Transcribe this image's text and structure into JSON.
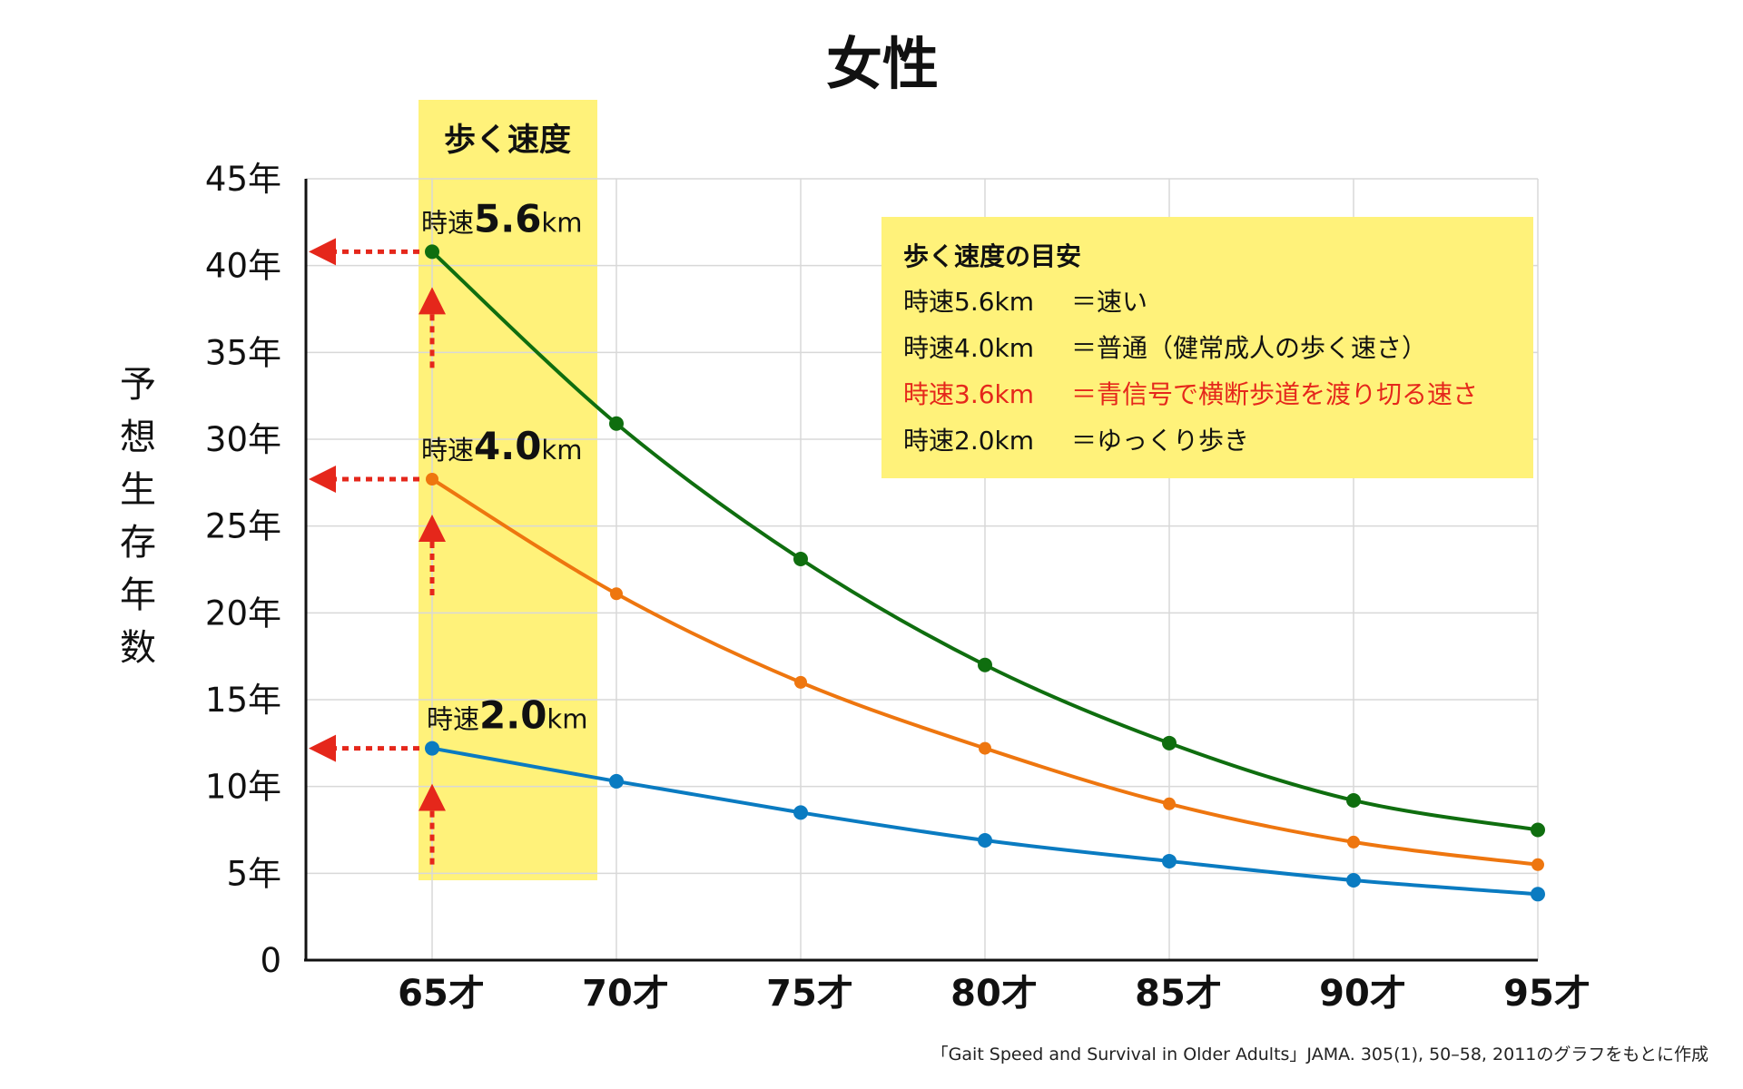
{
  "title": "女性",
  "band_label": "歩く速度",
  "y_axis_label": [
    "予",
    "想",
    "生",
    "存",
    "年",
    "数"
  ],
  "y_ticks": [
    "0",
    "5年",
    "10年",
    "15年",
    "20年",
    "25年",
    "30年",
    "35年",
    "40年",
    "45年"
  ],
  "x_ticks": [
    "65才",
    "70才",
    "75才",
    "80才",
    "85才",
    "90才",
    "95才"
  ],
  "speed_labels": [
    {
      "prefix": "時速",
      "value": "5.6",
      "unit": "km"
    },
    {
      "prefix": "時速",
      "value": "4.0",
      "unit": "km"
    },
    {
      "prefix": "時速",
      "value": "2.0",
      "unit": "km"
    }
  ],
  "legend": {
    "title": "歩く速度の目安",
    "items": [
      {
        "speed": "時速5.6km",
        "desc": "＝速い",
        "highlight": false
      },
      {
        "speed": "時速4.0km",
        "desc": "＝普通（健常成人の歩く速さ）",
        "highlight": false
      },
      {
        "speed": "時速3.6km",
        "desc": "＝青信号で横断歩道を渡り切る速さ",
        "highlight": true
      },
      {
        "speed": "時速2.0km",
        "desc": "＝ゆっくり歩き",
        "highlight": false
      }
    ]
  },
  "source_note": "「Gait Speed and Survival in Older Adults」JAMA. 305(1), 50–58, 2011のグラフをもとに作成",
  "colors": {
    "band": "#fff27a",
    "legend_bg": "#fff27a",
    "series_5_6": "#0f6e0f",
    "series_4_0": "#ee760f",
    "series_2_0": "#0a7bc1",
    "arrow": "#e5271b",
    "highlight_text": "#e5271b",
    "grid": "#d8d8d8",
    "axis": "#111111"
  },
  "chart_data": {
    "type": "line",
    "x": [
      65,
      70,
      75,
      80,
      85,
      90,
      95
    ],
    "ylim": [
      0,
      45
    ],
    "grid": true,
    "series": [
      {
        "name": "時速5.6km",
        "values": [
          40.8,
          30.9,
          23.1,
          17.0,
          12.5,
          9.2,
          7.5
        ]
      },
      {
        "name": "時速4.0km",
        "values": [
          27.7,
          21.1,
          16.0,
          12.2,
          9.0,
          6.8,
          5.5
        ]
      },
      {
        "name": "時速2.0km",
        "values": [
          12.2,
          10.3,
          8.5,
          6.9,
          5.7,
          4.6,
          3.8
        ]
      }
    ]
  }
}
